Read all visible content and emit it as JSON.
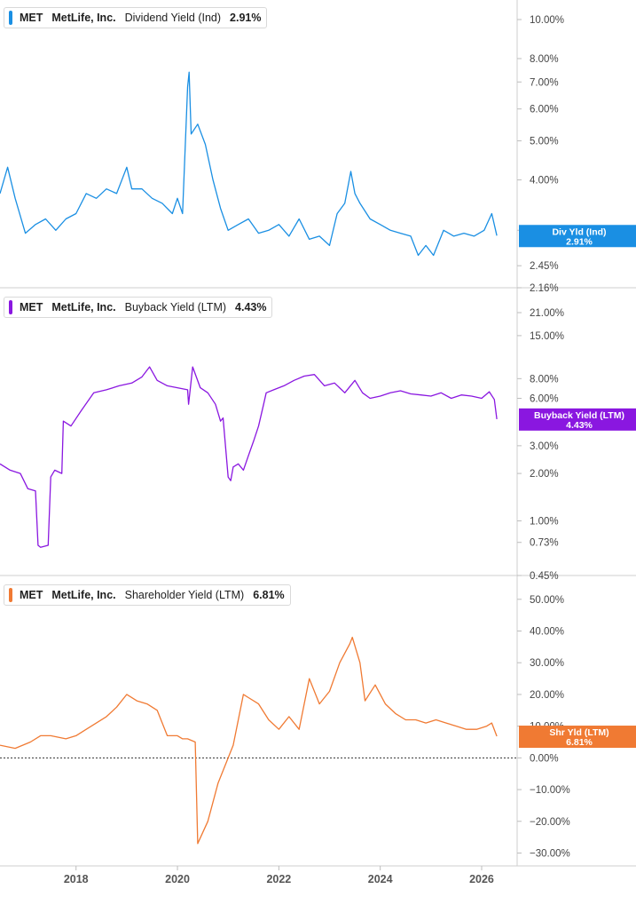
{
  "chart_data": [
    {
      "type": "line",
      "legend": {
        "ticker": "MET",
        "company": "MetLife, Inc.",
        "metric": "Dividend Yield (Ind)",
        "value": "2.91%"
      },
      "tag": {
        "label": "Div Yld (Ind)",
        "value": "2.91%"
      },
      "colors": {
        "line": "#1a8fe3",
        "tag": "#1a8fe3",
        "swatch": "#1a8fe3"
      },
      "scale": "log",
      "y_ticks": [
        "10.00%",
        "8.00%",
        "7.00%",
        "6.00%",
        "5.00%",
        "4.00%",
        "3.00%",
        "2.45%",
        "2.16%"
      ],
      "x": [
        2016.5,
        2016.65,
        2016.8,
        2017.0,
        2017.2,
        2017.4,
        2017.6,
        2017.8,
        2018.0,
        2018.2,
        2018.4,
        2018.6,
        2018.8,
        2019.0,
        2019.1,
        2019.3,
        2019.5,
        2019.7,
        2019.9,
        2020.0,
        2020.1,
        2020.2,
        2020.23,
        2020.27,
        2020.4,
        2020.55,
        2020.7,
        2020.85,
        2021.0,
        2021.2,
        2021.4,
        2021.6,
        2021.8,
        2022.0,
        2022.2,
        2022.4,
        2022.6,
        2022.8,
        2023.0,
        2023.15,
        2023.3,
        2023.42,
        2023.5,
        2023.6,
        2023.8,
        2024.0,
        2024.2,
        2024.4,
        2024.6,
        2024.75,
        2024.9,
        2025.05,
        2025.25,
        2025.45,
        2025.65,
        2025.85,
        2026.05,
        2026.2,
        2026.3
      ],
      "values": [
        3.7,
        4.3,
        3.6,
        2.95,
        3.1,
        3.2,
        3.0,
        3.2,
        3.3,
        3.7,
        3.6,
        3.8,
        3.7,
        4.3,
        3.8,
        3.8,
        3.6,
        3.5,
        3.3,
        3.6,
        3.3,
        6.8,
        7.4,
        5.2,
        5.5,
        4.9,
        4.0,
        3.4,
        3.0,
        3.1,
        3.2,
        2.95,
        3.0,
        3.1,
        2.9,
        3.2,
        2.85,
        2.9,
        2.75,
        3.3,
        3.5,
        4.2,
        3.7,
        3.5,
        3.2,
        3.1,
        3.0,
        2.95,
        2.9,
        2.6,
        2.75,
        2.6,
        3.0,
        2.9,
        2.95,
        2.9,
        3.0,
        3.3,
        2.91
      ]
    },
    {
      "type": "line",
      "legend": {
        "ticker": "MET",
        "company": "MetLife, Inc.",
        "metric": "Buyback Yield (LTM)",
        "value": "4.43%"
      },
      "tag": {
        "label": "Buyback Yield (LTM)",
        "value": "4.43%"
      },
      "colors": {
        "line": "#8a17e0",
        "tag": "#8a17e0",
        "swatch": "#8a17e0"
      },
      "scale": "log",
      "y_ticks": [
        "21.00%",
        "15.00%",
        "8.00%",
        "6.00%",
        "3.00%",
        "2.00%",
        "1.00%",
        "0.73%",
        "0.45%"
      ],
      "x": [
        2016.5,
        2016.7,
        2016.9,
        2017.05,
        2017.2,
        2017.25,
        2017.3,
        2017.45,
        2017.5,
        2017.58,
        2017.72,
        2017.75,
        2017.9,
        2018.1,
        2018.35,
        2018.6,
        2018.85,
        2019.1,
        2019.3,
        2019.45,
        2019.6,
        2019.8,
        2020.0,
        2020.2,
        2020.22,
        2020.3,
        2020.45,
        2020.6,
        2020.75,
        2020.85,
        2020.9,
        2021.0,
        2021.05,
        2021.1,
        2021.2,
        2021.3,
        2021.4,
        2021.5,
        2021.6,
        2021.7,
        2021.75,
        2021.9,
        2022.1,
        2022.3,
        2022.5,
        2022.7,
        2022.9,
        2023.1,
        2023.3,
        2023.5,
        2023.65,
        2023.8,
        2024.0,
        2024.2,
        2024.4,
        2024.6,
        2024.8,
        2025.0,
        2025.2,
        2025.4,
        2025.6,
        2025.8,
        2026.0,
        2026.15,
        2026.25,
        2026.3
      ],
      "values": [
        2.3,
        2.1,
        2.0,
        1.6,
        1.55,
        0.7,
        0.68,
        0.7,
        1.9,
        2.1,
        2.0,
        4.3,
        4.0,
        5.0,
        6.5,
        6.8,
        7.2,
        7.5,
        8.2,
        9.5,
        7.8,
        7.2,
        7.0,
        6.8,
        5.5,
        9.5,
        7.0,
        6.5,
        5.5,
        4.3,
        4.5,
        1.9,
        1.8,
        2.2,
        2.3,
        2.1,
        2.6,
        3.2,
        4.0,
        5.5,
        6.5,
        6.8,
        7.2,
        7.8,
        8.3,
        8.5,
        7.2,
        7.5,
        6.5,
        7.8,
        6.5,
        6.0,
        6.2,
        6.5,
        6.7,
        6.4,
        6.3,
        6.2,
        6.5,
        6.0,
        6.3,
        6.2,
        6.0,
        6.6,
        5.9,
        4.43
      ]
    },
    {
      "type": "line",
      "legend": {
        "ticker": "MET",
        "company": "MetLife, Inc.",
        "metric": "Shareholder Yield (LTM)",
        "value": "6.81%"
      },
      "tag": {
        "label": "Shr Yld (LTM)",
        "value": "6.81%"
      },
      "colors": {
        "line": "#f07a33",
        "tag": "#f07a33",
        "swatch": "#f07a33"
      },
      "scale": "linear",
      "ylim": [
        -33.5,
        57.5
      ],
      "y_ticks": [
        50,
        40,
        30,
        20,
        10,
        0,
        -10,
        -20,
        -30
      ],
      "y_tick_labels": [
        "50.00%",
        "40.00%",
        "30.00%",
        "20.00%",
        "10.00%",
        "0.00%",
        "−10.00%",
        "−20.00%",
        "−30.00%"
      ],
      "zero_line": true,
      "x": [
        2016.5,
        2016.8,
        2017.1,
        2017.3,
        2017.5,
        2017.8,
        2018.0,
        2018.2,
        2018.4,
        2018.6,
        2018.8,
        2019.0,
        2019.2,
        2019.4,
        2019.6,
        2019.8,
        2020.0,
        2020.1,
        2020.2,
        2020.35,
        2020.4,
        2020.6,
        2020.8,
        2021.0,
        2021.1,
        2021.3,
        2021.4,
        2021.6,
        2021.8,
        2022.0,
        2022.2,
        2022.4,
        2022.6,
        2022.8,
        2023.0,
        2023.2,
        2023.4,
        2023.45,
        2023.6,
        2023.7,
        2023.9,
        2024.1,
        2024.3,
        2024.5,
        2024.7,
        2024.9,
        2025.1,
        2025.3,
        2025.5,
        2025.7,
        2025.9,
        2026.1,
        2026.2,
        2026.3
      ],
      "values": [
        4,
        3,
        5,
        7,
        7,
        6,
        7,
        9,
        11,
        13,
        16,
        20,
        18,
        17,
        15,
        7,
        7,
        6,
        6,
        5,
        -27,
        -20,
        -8,
        0,
        4,
        20,
        19,
        17,
        12,
        9,
        13,
        9,
        25,
        17,
        21,
        30,
        36,
        38,
        30,
        18,
        23,
        17,
        14,
        12,
        12,
        11,
        12,
        11,
        10,
        9,
        9,
        10,
        11,
        6.81
      ]
    }
  ],
  "x_axis": {
    "ticks": [
      "2018",
      "2020",
      "2022",
      "2024",
      "2026"
    ],
    "tick_values": [
      2018,
      2020,
      2022,
      2024,
      2026
    ],
    "range": [
      2016.5,
      2026.7
    ]
  }
}
